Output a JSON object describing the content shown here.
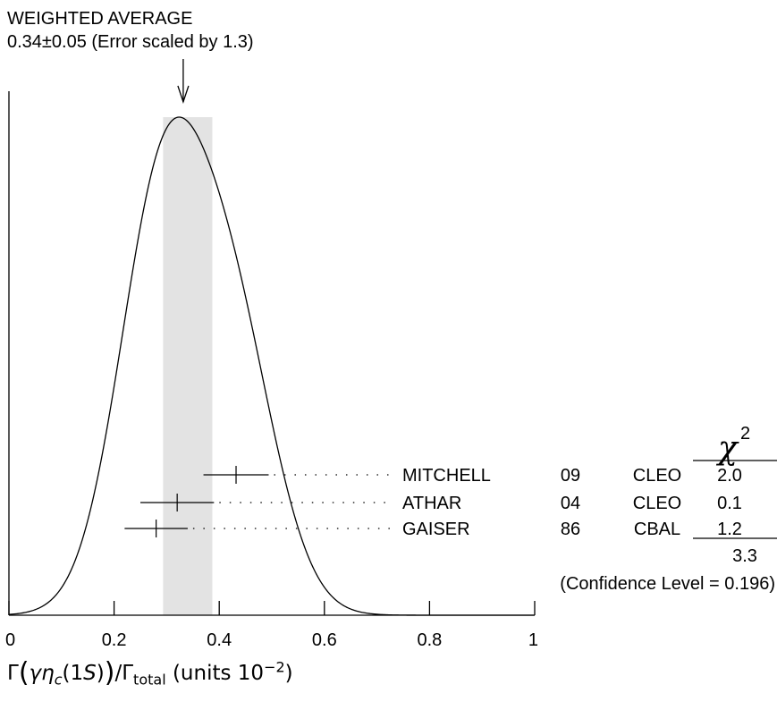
{
  "header": {
    "title": "WEIGHTED AVERAGE",
    "subtitle": "0.34±0.05 (Error scaled by 1.3)"
  },
  "chart_data": {
    "type": "ideogram",
    "xlim": [
      0,
      1
    ],
    "x_ticks": [
      "0",
      "0.2",
      "0.4",
      "0.6",
      "0.8",
      "1"
    ],
    "xlabel": "Γ(γη_c(1S))/Γ_total (units 10^−2)",
    "weighted_average": {
      "value": 0.34,
      "error": 0.05,
      "error_scale": 1.3
    },
    "measurements": [
      {
        "name": "MITCHELL",
        "year": "09",
        "experiment": "CLEO",
        "value": 0.432,
        "low": 0.37,
        "high": 0.494,
        "chi2": "2.0"
      },
      {
        "name": "ATHAR",
        "year": "04",
        "experiment": "CLEO",
        "value": 0.32,
        "low": 0.25,
        "high": 0.39,
        "chi2": "0.1"
      },
      {
        "name": "GAISER",
        "year": "86",
        "experiment": "CBAL",
        "value": 0.28,
        "low": 0.22,
        "high": 0.34,
        "chi2": "1.2"
      }
    ],
    "chi2_header": "χ",
    "chi2_exponent": "2",
    "chi2_total": "3.3",
    "confidence_level": "(Confidence Level = 0.196)"
  },
  "xlabel_parts": {
    "gamma": "Γ",
    "lparen": "(",
    "inner_gamma": "γ",
    "eta": "η",
    "eta_sub": "c",
    "state": "(1",
    "state_s": "S",
    "state_close": ")",
    "rparen": ")",
    "slash": "/Γ",
    "total_sub": "total",
    "units": " (units 10",
    "units_exp": "−2",
    "units_close": ")"
  }
}
